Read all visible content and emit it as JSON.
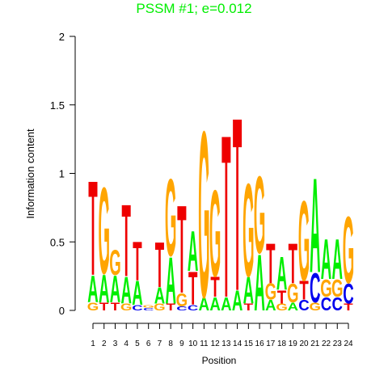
{
  "chart_data": {
    "type": "logo",
    "title": "PSSM #1; e=0.012",
    "title_color": "#00ee00",
    "x_label": "Position",
    "y_label": "Information content",
    "categories": [
      1,
      2,
      3,
      4,
      5,
      6,
      7,
      8,
      9,
      10,
      11,
      12,
      13,
      14,
      15,
      16,
      17,
      18,
      19,
      20,
      21,
      22,
      23,
      24
    ],
    "ylim": [
      0,
      2
    ],
    "yticks": [
      0,
      0.5,
      1,
      1.5,
      2
    ],
    "colors": {
      "A": "#00ee00",
      "C": "#0000ee",
      "G": "#ffa500",
      "T": "#ee0000"
    },
    "stacks": [
      [
        {
          "letter": "G",
          "height": 0.06
        },
        {
          "letter": "A",
          "height": 0.2
        },
        {
          "letter": "T",
          "height": 0.71
        }
      ],
      [
        {
          "letter": "T",
          "height": 0.06
        },
        {
          "letter": "A",
          "height": 0.21
        },
        {
          "letter": "G",
          "height": 0.65
        }
      ],
      [
        {
          "letter": "T",
          "height": 0.06
        },
        {
          "letter": "A",
          "height": 0.2
        },
        {
          "letter": "G",
          "height": 0.19
        }
      ],
      [
        {
          "letter": "G",
          "height": 0.05
        },
        {
          "letter": "A",
          "height": 0.2
        },
        {
          "letter": "T",
          "height": 0.54
        }
      ],
      [
        {
          "letter": "C",
          "height": 0.04
        },
        {
          "letter": "A",
          "height": 0.18
        },
        {
          "letter": "T",
          "height": 0.29
        }
      ],
      [
        {
          "letter": "C",
          "height": 0.02
        },
        {
          "letter": "G",
          "height": 0.02
        }
      ],
      [
        {
          "letter": "G",
          "height": 0.05
        },
        {
          "letter": "A",
          "height": 0.12
        },
        {
          "letter": "T",
          "height": 0.34
        }
      ],
      [
        {
          "letter": "T",
          "height": 0.05
        },
        {
          "letter": "A",
          "height": 0.35
        },
        {
          "letter": "G",
          "height": 0.58
        }
      ],
      [
        {
          "letter": "C",
          "height": 0.03
        },
        {
          "letter": "G",
          "height": 0.1
        },
        {
          "letter": "T",
          "height": 0.66
        }
      ],
      [
        {
          "letter": "C",
          "height": 0.04
        },
        {
          "letter": "T",
          "height": 0.25
        },
        {
          "letter": "A",
          "height": 0.3
        }
      ],
      [
        {
          "letter": "A",
          "height": 0.1
        },
        {
          "letter": "G",
          "height": 1.25
        }
      ],
      [
        {
          "letter": "A",
          "height": 0.1
        },
        {
          "letter": "T",
          "height": 0.15
        },
        {
          "letter": "G",
          "height": 0.65
        }
      ],
      [
        {
          "letter": "A",
          "height": 0.1
        },
        {
          "letter": "T",
          "height": 1.22
        }
      ],
      [
        {
          "letter": "A",
          "height": 0.15
        },
        {
          "letter": "T",
          "height": 1.3
        }
      ],
      [
        {
          "letter": "T",
          "height": 0.05
        },
        {
          "letter": "A",
          "height": 0.2
        },
        {
          "letter": "G",
          "height": 0.7
        }
      ],
      [
        {
          "letter": "A",
          "height": 0.42
        },
        {
          "letter": "G",
          "height": 0.58
        }
      ],
      [
        {
          "letter": "A",
          "height": 0.08
        },
        {
          "letter": "G",
          "height": 0.12
        },
        {
          "letter": "T",
          "height": 0.3
        }
      ],
      [
        {
          "letter": "G",
          "height": 0.05
        },
        {
          "letter": "T",
          "height": 0.1
        },
        {
          "letter": "A",
          "height": 0.25
        }
      ],
      [
        {
          "letter": "A",
          "height": 0.06
        },
        {
          "letter": "G",
          "height": 0.14
        },
        {
          "letter": "T",
          "height": 0.3
        }
      ],
      [
        {
          "letter": "C",
          "height": 0.08
        },
        {
          "letter": "T",
          "height": 0.14
        },
        {
          "letter": "G",
          "height": 0.6
        }
      ],
      [
        {
          "letter": "G",
          "height": 0.06
        },
        {
          "letter": "C",
          "height": 0.22
        },
        {
          "letter": "A",
          "height": 0.71
        }
      ],
      [
        {
          "letter": "C",
          "height": 0.1
        },
        {
          "letter": "G",
          "height": 0.13
        },
        {
          "letter": "A",
          "height": 0.3
        }
      ],
      [
        {
          "letter": "C",
          "height": 0.1
        },
        {
          "letter": "G",
          "height": 0.13
        },
        {
          "letter": "A",
          "height": 0.3
        }
      ],
      [
        {
          "letter": "T",
          "height": 0.05
        },
        {
          "letter": "C",
          "height": 0.15
        },
        {
          "letter": "G",
          "height": 0.5
        }
      ]
    ]
  }
}
